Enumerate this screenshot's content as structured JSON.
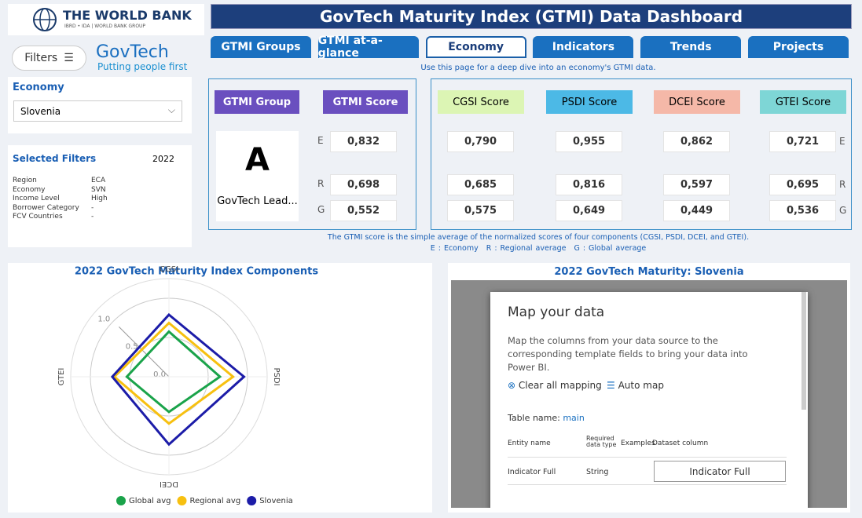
{
  "logo": {
    "title": "THE WORLD BANK",
    "subtitle": "IBRD • IDA | WORLD BANK GROUP"
  },
  "filters_button": "Filters",
  "govtech": {
    "name": "GovTech",
    "tagline": "Putting people first"
  },
  "header": {
    "title": "GovTech Maturity Index (GTMI) Data Dashboard"
  },
  "tabs": [
    "GTMI Groups",
    "GTMI at-a-glance",
    "Economy",
    "Indicators",
    "Trends",
    "Projects"
  ],
  "active_tab": 2,
  "instruction": "Use this page for a deep dive into an economy's GTMI data.",
  "economy_select": {
    "label": "Economy",
    "value": "Slovenia"
  },
  "selected_filters": {
    "title": "Selected Filters",
    "year": "2022",
    "rows": [
      [
        "Region",
        "ECA"
      ],
      [
        "Economy",
        "SVN"
      ],
      [
        "Income Level",
        "High"
      ],
      [
        "Borrower Category",
        "-"
      ],
      [
        "FCV Countries",
        "-"
      ]
    ]
  },
  "group_panel": {
    "group_header": "GTMI Group",
    "score_header": "GTMI Score",
    "group": "A",
    "group_name": "GovTech Lead...",
    "rows": [
      {
        "key": "E",
        "score": "0,832"
      },
      {
        "key": "R",
        "score": "0,698"
      },
      {
        "key": "G",
        "score": "0,552"
      }
    ]
  },
  "components": {
    "headers": [
      "CGSI Score",
      "PSDI Score",
      "DCEI Score",
      "GTEI Score"
    ],
    "colors": [
      "#dcf5b4",
      "#4cb9e6",
      "#f5b8a8",
      "#7ed6d6"
    ],
    "rows": [
      {
        "key": "E",
        "values": [
          "0,790",
          "0,955",
          "0,862",
          "0,721"
        ]
      },
      {
        "key": "R",
        "values": [
          "0,685",
          "0,816",
          "0,597",
          "0,695"
        ]
      },
      {
        "key": "G",
        "values": [
          "0,575",
          "0,649",
          "0,449",
          "0,536"
        ]
      }
    ]
  },
  "footnote": {
    "text": "The GTMI score is the simple average of the normalized scores of four components (CGSI, PSDI, DCEI, and GTEI).",
    "legend": [
      "E : Economy",
      "R : Regional average",
      "G : Global average"
    ]
  },
  "chart_data": {
    "type": "radar",
    "title": "2022 GovTech Maturity Index Components",
    "categories": [
      "CGSI",
      "PSDI",
      "DCEI",
      "GTEI"
    ],
    "series": [
      {
        "name": "Global avg",
        "color": "#1aa34a",
        "values": [
          0.575,
          0.649,
          0.449,
          0.536
        ]
      },
      {
        "name": "Regional avg",
        "color": "#f7c010",
        "values": [
          0.685,
          0.816,
          0.597,
          0.695
        ]
      },
      {
        "name": "Slovenia",
        "color": "#1c1ca8",
        "values": [
          0.79,
          0.955,
          0.862,
          0.721
        ]
      }
    ],
    "rlim": [
      0,
      1.25
    ],
    "rticks": [
      {
        "value": 0,
        "label": "0.0"
      },
      0.5,
      {
        "value": 1,
        "label": "1.0"
      }
    ]
  },
  "map_panel": {
    "title": "2022 GovTech Maturity: Slovenia",
    "dialog": {
      "title": "Map your data",
      "description": "Map the columns from your data source to the corresponding template fields to bring your data into Power BI.",
      "clear": "Clear all mapping",
      "auto": "Auto map",
      "table_label": "Table name:",
      "table_name": "main",
      "columns": [
        "Entity name",
        "Required data type",
        "Examples",
        "Dataset column"
      ],
      "row": [
        "Indicator Full",
        "String",
        "Indicator Full"
      ]
    }
  }
}
